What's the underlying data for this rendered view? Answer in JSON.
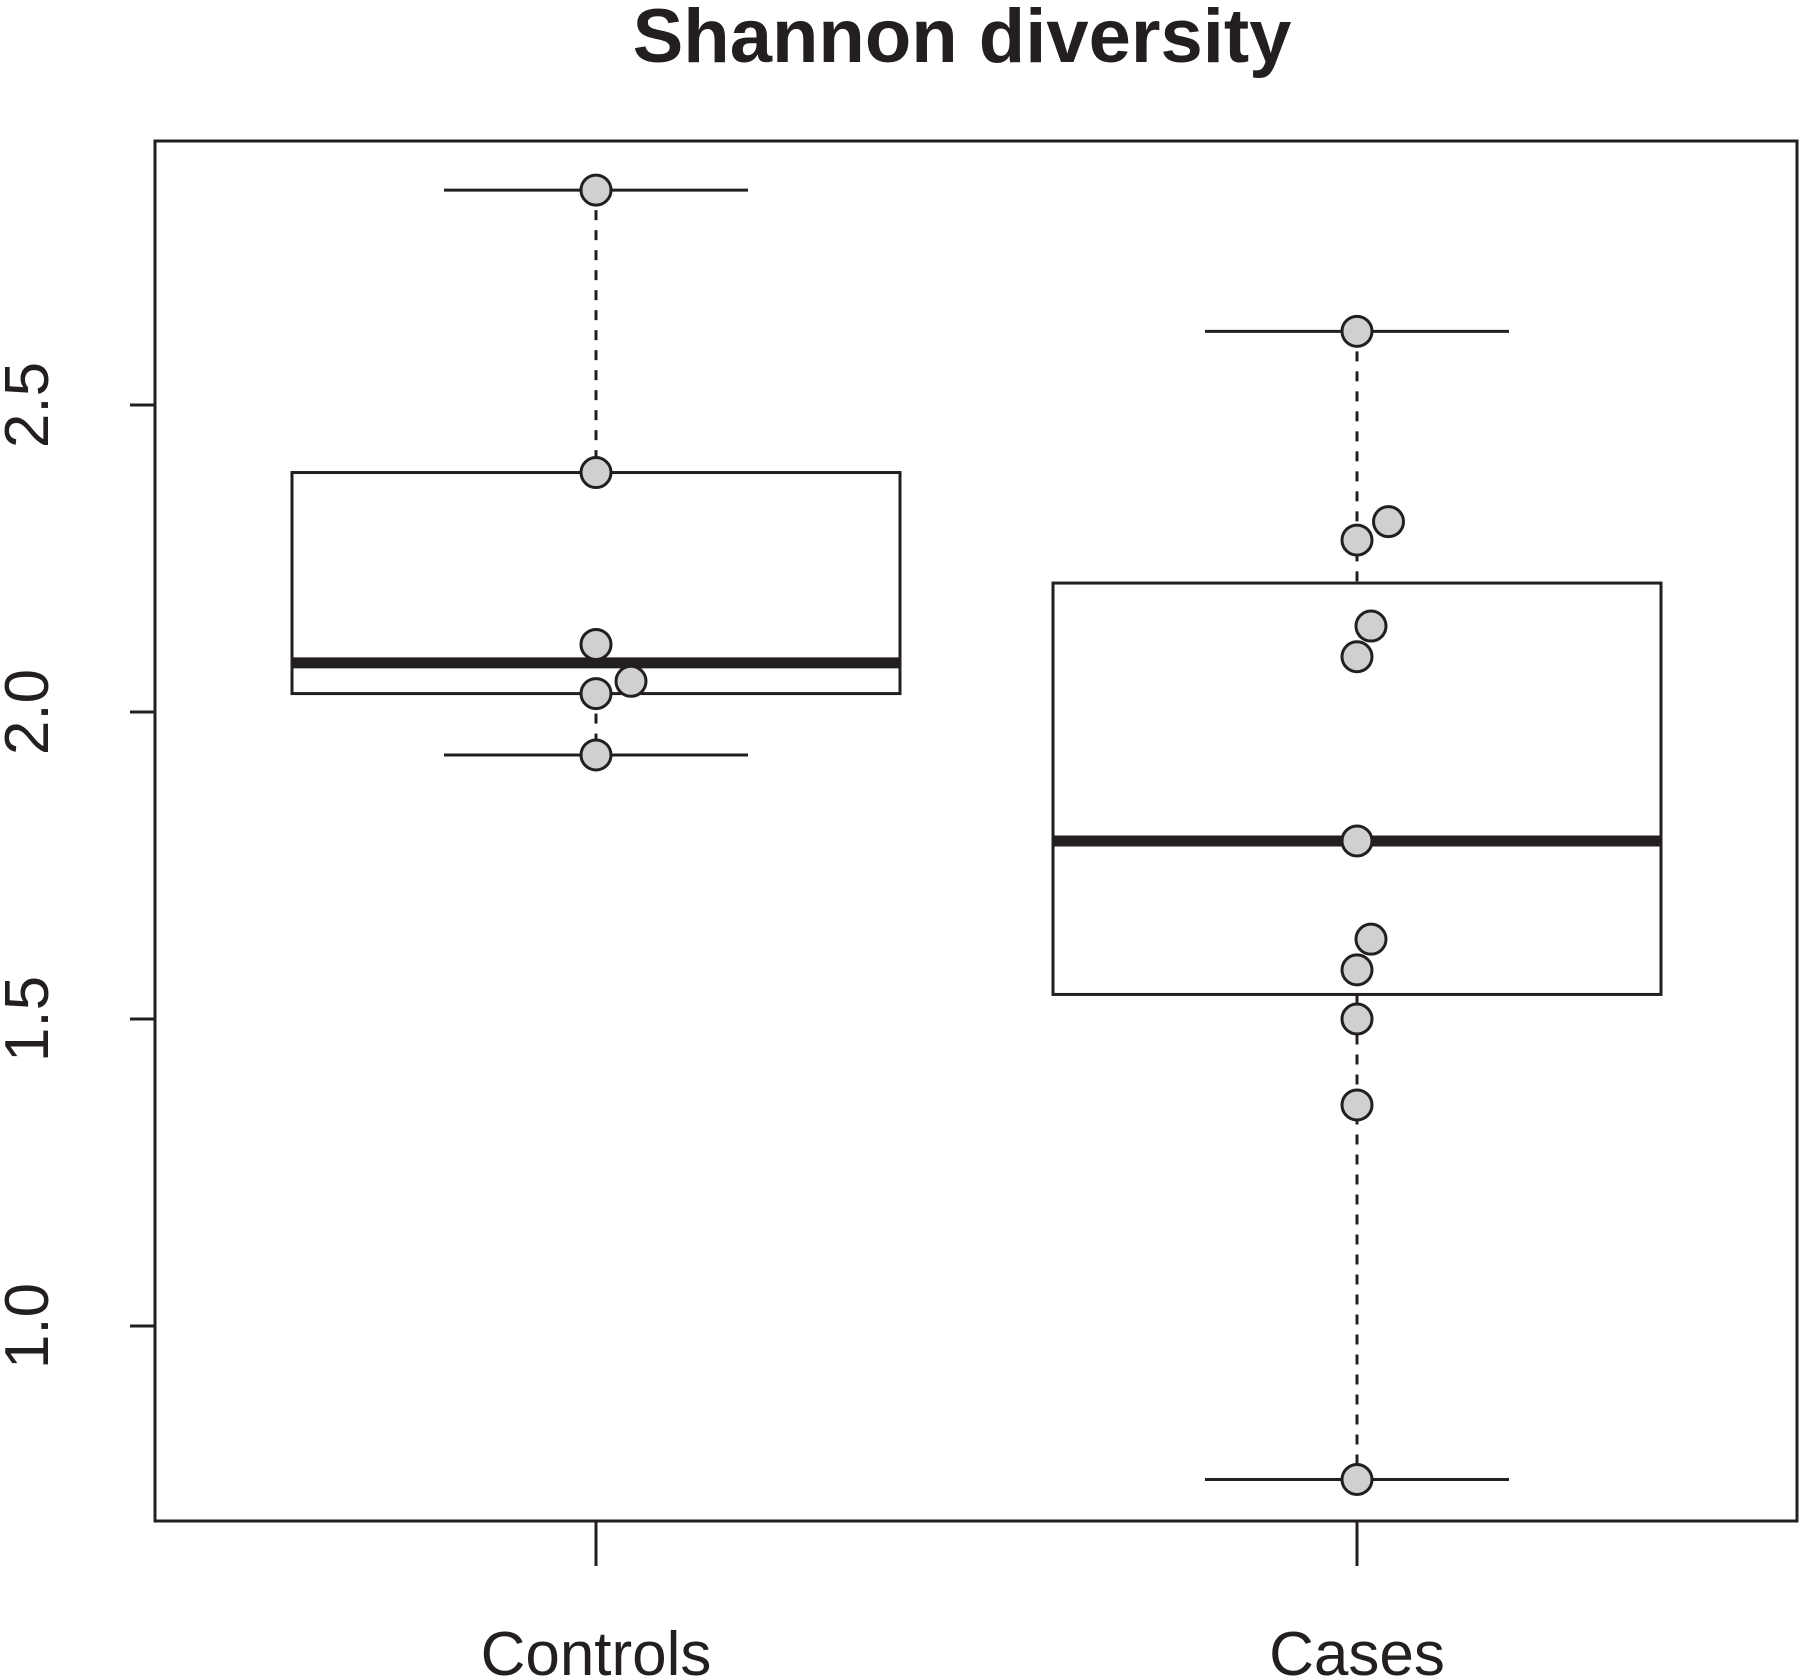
{
  "chart_data": {
    "type": "box",
    "title": "Shannon diversity",
    "xlabel": "",
    "ylabel": "",
    "categories": [
      "Controls",
      "Cases"
    ],
    "y_ticks": [
      "1.0",
      "1.5",
      "2.0",
      "2.5"
    ],
    "y_tick_values": [
      1.0,
      1.5,
      2.0,
      2.5
    ],
    "ylim": [
      0.68,
      2.93
    ],
    "grid": false,
    "point_fill": "#d0d0d0",
    "line_color": "#231f20",
    "boxes": [
      {
        "name": "Controls",
        "whisker_low": 1.93,
        "q1": 2.03,
        "median": 2.08,
        "q3": 2.39,
        "whisker_high": 2.85,
        "points": [
          {
            "y": 2.85,
            "jitter": 0
          },
          {
            "y": 2.39,
            "jitter": 0
          },
          {
            "y": 2.11,
            "jitter": 0
          },
          {
            "y": 2.05,
            "jitter": 0.05
          },
          {
            "y": 2.03,
            "jitter": 0
          },
          {
            "y": 1.93,
            "jitter": 0
          }
        ]
      },
      {
        "name": "Cases",
        "whisker_low": 0.75,
        "q1": 1.54,
        "median": 1.79,
        "q3": 2.21,
        "whisker_high": 2.62,
        "points": [
          {
            "y": 2.62,
            "jitter": 0
          },
          {
            "y": 2.31,
            "jitter": 0.045
          },
          {
            "y": 2.28,
            "jitter": 0
          },
          {
            "y": 2.14,
            "jitter": 0.02
          },
          {
            "y": 2.09,
            "jitter": 0
          },
          {
            "y": 1.79,
            "jitter": 0
          },
          {
            "y": 1.63,
            "jitter": 0.02
          },
          {
            "y": 1.58,
            "jitter": 0
          },
          {
            "y": 1.5,
            "jitter": 0
          },
          {
            "y": 1.36,
            "jitter": 0
          },
          {
            "y": 0.75,
            "jitter": 0
          }
        ]
      }
    ]
  }
}
